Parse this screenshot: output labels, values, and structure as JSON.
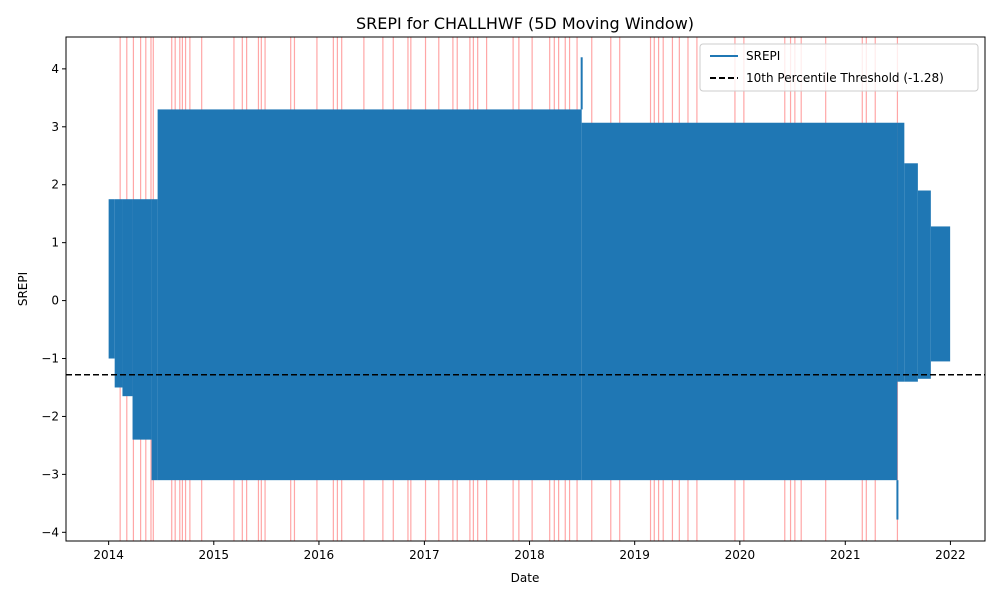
{
  "chart_data": {
    "type": "line",
    "title": "SREPI for CHALLHWF (5D Moving Window)",
    "xlabel": "Date",
    "ylabel": "SREPI",
    "xlim": [
      "2013-08-06",
      "2022-05-01"
    ],
    "ylim": [
      -4.15,
      4.55
    ],
    "x_ticks": [
      "2014",
      "2015",
      "2016",
      "2017",
      "2018",
      "2019",
      "2020",
      "2021",
      "2022"
    ],
    "y_ticks": [
      -4,
      -3,
      -2,
      -1,
      0,
      1,
      2,
      3,
      4
    ],
    "grid": false,
    "legend_position": "upper-right",
    "series": [
      {
        "name": "SREPI",
        "color": "#1f77b4",
        "style": "solid",
        "band_segments": [
          {
            "start": "2014-01-01",
            "end": "2014-01-22",
            "low": -1.0,
            "high": 1.75
          },
          {
            "start": "2014-01-22",
            "end": "2014-02-18",
            "low": -1.5,
            "high": 1.75
          },
          {
            "start": "2014-02-18",
            "end": "2014-03-25",
            "low": -1.65,
            "high": 1.75
          },
          {
            "start": "2014-03-25",
            "end": "2014-05-30",
            "low": -2.4,
            "high": 1.75
          },
          {
            "start": "2014-05-30",
            "end": "2014-06-20",
            "low": -3.1,
            "high": 1.75
          },
          {
            "start": "2014-06-20",
            "end": "2018-07-01",
            "low": -3.1,
            "high": 3.3
          },
          {
            "start": "2018-07-01",
            "end": "2021-07-01",
            "low": -3.1,
            "high": 3.07
          },
          {
            "start": "2021-07-01",
            "end": "2021-07-25",
            "low": -1.4,
            "high": 3.07
          },
          {
            "start": "2021-07-25",
            "end": "2021-09-10",
            "low": -1.4,
            "high": 2.37
          },
          {
            "start": "2021-09-10",
            "end": "2021-10-25",
            "low": -1.35,
            "high": 1.9
          },
          {
            "start": "2021-10-25",
            "end": "2021-12-31",
            "low": -1.05,
            "high": 1.28
          }
        ],
        "spikes": [
          {
            "date": "2018-07-01",
            "value": 4.2
          },
          {
            "date": "2021-07-01",
            "value": -3.78
          }
        ]
      },
      {
        "name": "10th Percentile Threshold (-1.28)",
        "color": "#000000",
        "style": "dashed",
        "value": -1.28
      }
    ],
    "drought_events": {
      "color": "#ff0000",
      "opacity": 0.35,
      "dates": [
        "2014-02-10",
        "2014-03-05",
        "2014-03-28",
        "2014-04-22",
        "2014-05-10",
        "2014-05-28",
        "2014-06-05",
        "2014-08-08",
        "2014-08-20",
        "2014-09-05",
        "2014-09-14",
        "2014-09-25",
        "2014-10-10",
        "2014-11-20",
        "2015-03-12",
        "2015-04-10",
        "2015-04-25",
        "2015-06-05",
        "2015-06-15",
        "2015-06-28",
        "2015-09-25",
        "2015-10-08",
        "2015-12-25",
        "2016-02-20",
        "2016-03-05",
        "2016-03-20",
        "2016-06-05",
        "2016-08-10",
        "2016-09-15",
        "2016-11-05",
        "2016-11-15",
        "2017-01-05",
        "2017-02-20",
        "2017-04-10",
        "2017-04-25",
        "2017-06-08",
        "2017-06-20",
        "2017-07-05",
        "2017-08-05",
        "2017-11-05",
        "2017-11-25",
        "2018-01-10",
        "2018-03-12",
        "2018-03-28",
        "2018-04-12",
        "2018-05-05",
        "2018-05-20",
        "2018-06-15",
        "2018-08-05",
        "2018-10-10",
        "2018-11-10",
        "2019-02-25",
        "2019-03-10",
        "2019-03-25",
        "2019-04-10",
        "2019-05-12",
        "2019-06-05",
        "2019-07-05",
        "2019-08-05",
        "2019-12-15",
        "2020-01-15",
        "2020-06-05",
        "2020-06-25",
        "2020-07-10",
        "2020-08-01",
        "2020-10-25",
        "2021-03-01",
        "2021-03-15",
        "2021-04-15",
        "2021-07-01"
      ]
    }
  }
}
